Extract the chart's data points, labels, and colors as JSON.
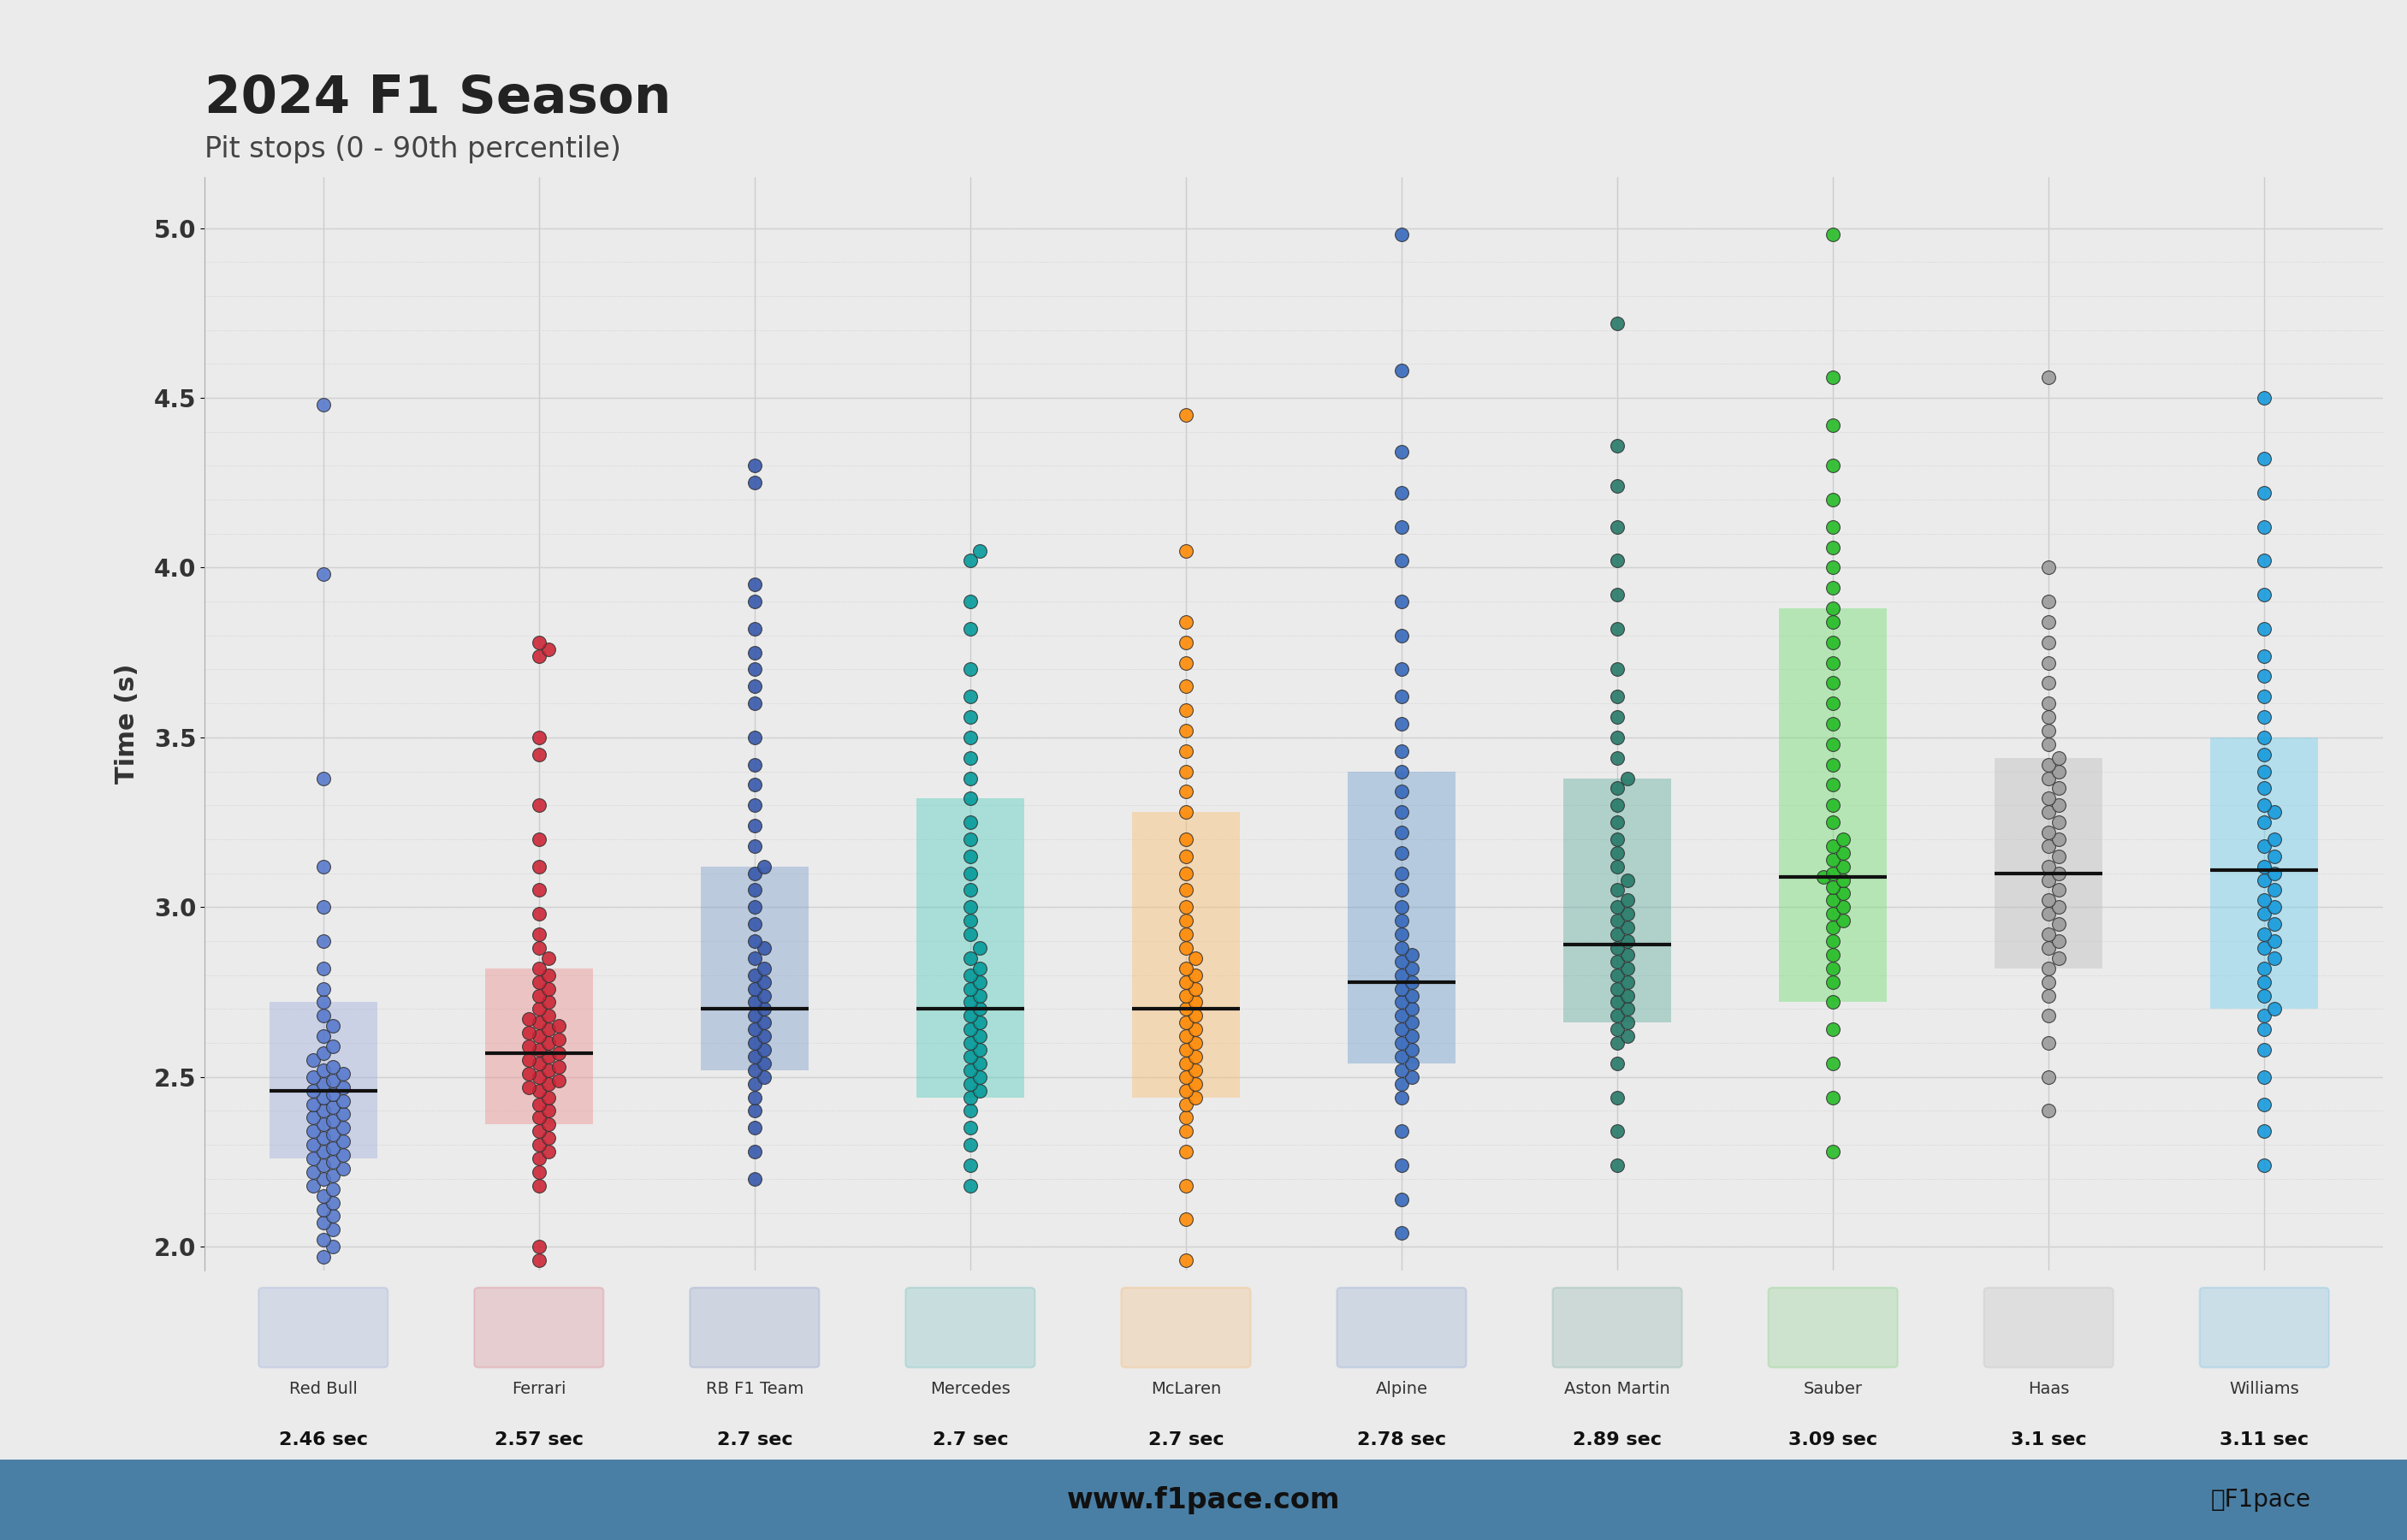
{
  "title": "2024 F1 Season",
  "subtitle": "Pit stops (0 - 90th percentile)",
  "ylabel": "Time (s)",
  "ylim": [
    1.93,
    5.15
  ],
  "yticks": [
    2.0,
    2.5,
    3.0,
    3.5,
    4.0,
    4.5,
    5.0
  ],
  "background_color": "#ebebeb",
  "footer_color": "#4a7fa5",
  "teams": [
    {
      "name": "Red Bull",
      "median": 2.46,
      "label": "2.46 sec",
      "color": "#5577cc",
      "box_color": "#99aadd",
      "q1": 2.26,
      "q3": 2.72,
      "points": [
        1.97,
        2.0,
        2.02,
        2.05,
        2.07,
        2.09,
        2.11,
        2.13,
        2.15,
        2.17,
        2.18,
        2.2,
        2.21,
        2.22,
        2.23,
        2.24,
        2.25,
        2.26,
        2.27,
        2.28,
        2.29,
        2.3,
        2.31,
        2.32,
        2.33,
        2.34,
        2.35,
        2.36,
        2.37,
        2.38,
        2.39,
        2.4,
        2.41,
        2.42,
        2.43,
        2.44,
        2.45,
        2.46,
        2.47,
        2.48,
        2.49,
        2.5,
        2.51,
        2.52,
        2.53,
        2.55,
        2.57,
        2.59,
        2.62,
        2.65,
        2.68,
        2.72,
        2.76,
        2.82,
        2.9,
        3.0,
        3.12,
        3.38,
        3.98,
        4.48
      ]
    },
    {
      "name": "Ferrari",
      "median": 2.57,
      "label": "2.57 sec",
      "color": "#cc2233",
      "box_color": "#ee8888",
      "q1": 2.36,
      "q3": 2.82,
      "points": [
        1.96,
        2.0,
        2.18,
        2.22,
        2.26,
        2.28,
        2.3,
        2.32,
        2.34,
        2.36,
        2.38,
        2.4,
        2.42,
        2.44,
        2.46,
        2.47,
        2.48,
        2.49,
        2.5,
        2.51,
        2.52,
        2.53,
        2.54,
        2.55,
        2.56,
        2.57,
        2.58,
        2.59,
        2.6,
        2.61,
        2.62,
        2.63,
        2.64,
        2.65,
        2.66,
        2.67,
        2.68,
        2.7,
        2.72,
        2.74,
        2.76,
        2.78,
        2.8,
        2.82,
        2.85,
        2.88,
        2.92,
        2.98,
        3.05,
        3.12,
        3.2,
        3.3,
        3.45,
        3.5,
        3.74,
        3.76,
        3.78
      ]
    },
    {
      "name": "RB F1 Team",
      "median": 2.7,
      "label": "2.7 sec",
      "color": "#3355aa",
      "box_color": "#7799cc",
      "q1": 2.52,
      "q3": 3.12,
      "points": [
        2.2,
        2.28,
        2.35,
        2.4,
        2.44,
        2.48,
        2.5,
        2.52,
        2.54,
        2.56,
        2.58,
        2.6,
        2.62,
        2.64,
        2.66,
        2.68,
        2.7,
        2.72,
        2.74,
        2.76,
        2.78,
        2.8,
        2.82,
        2.85,
        2.88,
        2.9,
        2.95,
        3.0,
        3.05,
        3.1,
        3.12,
        3.18,
        3.24,
        3.3,
        3.36,
        3.42,
        3.5,
        3.6,
        3.65,
        3.7,
        3.75,
        3.82,
        3.9,
        3.95,
        4.25,
        4.3
      ]
    },
    {
      "name": "Mercedes",
      "median": 2.7,
      "label": "2.7 sec",
      "color": "#009999",
      "box_color": "#44ccbb",
      "q1": 2.44,
      "q3": 3.32,
      "points": [
        2.18,
        2.24,
        2.3,
        2.35,
        2.4,
        2.44,
        2.46,
        2.48,
        2.5,
        2.52,
        2.54,
        2.56,
        2.58,
        2.6,
        2.62,
        2.64,
        2.66,
        2.68,
        2.7,
        2.72,
        2.74,
        2.76,
        2.78,
        2.8,
        2.82,
        2.85,
        2.88,
        2.92,
        2.96,
        3.0,
        3.05,
        3.1,
        3.15,
        3.2,
        3.25,
        3.32,
        3.38,
        3.44,
        3.5,
        3.56,
        3.62,
        3.7,
        3.82,
        3.9,
        4.02,
        4.05
      ]
    },
    {
      "name": "McLaren",
      "median": 2.7,
      "label": "2.7 sec",
      "color": "#ff8800",
      "box_color": "#ffbb66",
      "q1": 2.44,
      "q3": 3.28,
      "points": [
        1.96,
        2.08,
        2.18,
        2.28,
        2.34,
        2.38,
        2.42,
        2.44,
        2.46,
        2.48,
        2.5,
        2.52,
        2.54,
        2.56,
        2.58,
        2.6,
        2.62,
        2.64,
        2.66,
        2.68,
        2.7,
        2.72,
        2.74,
        2.76,
        2.78,
        2.8,
        2.82,
        2.85,
        2.88,
        2.92,
        2.96,
        3.0,
        3.05,
        3.1,
        3.15,
        3.2,
        3.28,
        3.34,
        3.4,
        3.46,
        3.52,
        3.58,
        3.65,
        3.72,
        3.78,
        3.84,
        4.05,
        4.45
      ]
    },
    {
      "name": "Alpine",
      "median": 2.78,
      "label": "2.78 sec",
      "color": "#3366bb",
      "box_color": "#6699cc",
      "q1": 2.54,
      "q3": 3.4,
      "points": [
        2.04,
        2.14,
        2.24,
        2.34,
        2.44,
        2.48,
        2.5,
        2.52,
        2.54,
        2.56,
        2.58,
        2.6,
        2.62,
        2.64,
        2.66,
        2.68,
        2.7,
        2.72,
        2.74,
        2.76,
        2.78,
        2.8,
        2.82,
        2.84,
        2.86,
        2.88,
        2.92,
        2.96,
        3.0,
        3.05,
        3.1,
        3.16,
        3.22,
        3.28,
        3.34,
        3.4,
        3.46,
        3.54,
        3.62,
        3.7,
        3.8,
        3.9,
        4.02,
        4.12,
        4.22,
        4.34,
        4.58,
        4.98
      ]
    },
    {
      "name": "Aston Martin",
      "median": 2.89,
      "label": "2.89 sec",
      "color": "#227766",
      "box_color": "#55aa99",
      "q1": 2.66,
      "q3": 3.38,
      "points": [
        2.24,
        2.34,
        2.44,
        2.54,
        2.6,
        2.62,
        2.64,
        2.66,
        2.68,
        2.7,
        2.72,
        2.74,
        2.76,
        2.78,
        2.8,
        2.82,
        2.84,
        2.86,
        2.88,
        2.9,
        2.92,
        2.94,
        2.96,
        2.98,
        3.0,
        3.02,
        3.05,
        3.08,
        3.12,
        3.16,
        3.2,
        3.25,
        3.3,
        3.35,
        3.38,
        3.44,
        3.5,
        3.56,
        3.62,
        3.7,
        3.82,
        3.92,
        4.02,
        4.12,
        4.24,
        4.36,
        4.72
      ]
    },
    {
      "name": "Sauber",
      "median": 3.09,
      "label": "3.09 sec",
      "color": "#22bb22",
      "box_color": "#66dd66",
      "q1": 2.72,
      "q3": 3.88,
      "points": [
        2.28,
        2.44,
        2.54,
        2.64,
        2.72,
        2.78,
        2.82,
        2.86,
        2.9,
        2.94,
        2.96,
        2.98,
        3.0,
        3.02,
        3.04,
        3.06,
        3.08,
        3.09,
        3.1,
        3.12,
        3.14,
        3.16,
        3.18,
        3.2,
        3.25,
        3.3,
        3.36,
        3.42,
        3.48,
        3.54,
        3.6,
        3.66,
        3.72,
        3.78,
        3.84,
        3.88,
        3.94,
        4.0,
        4.06,
        4.12,
        4.2,
        4.3,
        4.42,
        4.56,
        4.98
      ]
    },
    {
      "name": "Haas",
      "median": 3.1,
      "label": "3.1 sec",
      "color": "#999999",
      "box_color": "#bbbbbb",
      "q1": 2.82,
      "q3": 3.44,
      "points": [
        2.4,
        2.5,
        2.6,
        2.68,
        2.74,
        2.78,
        2.82,
        2.85,
        2.88,
        2.9,
        2.92,
        2.95,
        2.98,
        3.0,
        3.02,
        3.05,
        3.08,
        3.1,
        3.12,
        3.15,
        3.18,
        3.2,
        3.22,
        3.25,
        3.28,
        3.3,
        3.32,
        3.35,
        3.38,
        3.4,
        3.42,
        3.44,
        3.48,
        3.52,
        3.56,
        3.6,
        3.66,
        3.72,
        3.78,
        3.84,
        3.9,
        4.0,
        4.56
      ]
    },
    {
      "name": "Williams",
      "median": 3.11,
      "label": "3.11 sec",
      "color": "#1199dd",
      "box_color": "#66ccee",
      "q1": 2.7,
      "q3": 3.5,
      "points": [
        2.24,
        2.34,
        2.42,
        2.5,
        2.58,
        2.64,
        2.68,
        2.7,
        2.74,
        2.78,
        2.82,
        2.85,
        2.88,
        2.9,
        2.92,
        2.95,
        2.98,
        3.0,
        3.02,
        3.05,
        3.08,
        3.1,
        3.12,
        3.15,
        3.18,
        3.2,
        3.25,
        3.28,
        3.3,
        3.35,
        3.4,
        3.45,
        3.5,
        3.56,
        3.62,
        3.68,
        3.74,
        3.82,
        3.92,
        4.02,
        4.12,
        4.22,
        4.32,
        4.5
      ]
    }
  ]
}
